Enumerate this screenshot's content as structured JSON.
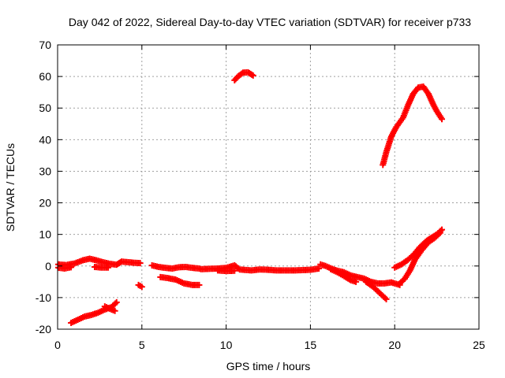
{
  "chart_data": {
    "type": "scatter",
    "title": "Day 042 of 2022, Sidereal Day-to-day VTEC variation (SDTVAR) for receiver p733",
    "xlabel": "GPS time / hours",
    "ylabel": "SDTVAR / TECUs",
    "xlim": [
      0,
      25
    ],
    "ylim": [
      -20,
      70
    ],
    "xticks": [
      0,
      5,
      10,
      15,
      20,
      25
    ],
    "yticks": [
      -20,
      -10,
      0,
      10,
      20,
      30,
      40,
      50,
      60,
      70
    ],
    "xtick_labels": [
      "0",
      "5",
      "10",
      "15",
      "20",
      "25"
    ],
    "ytick_labels": [
      "-20",
      "-10",
      "0",
      "10",
      "20",
      "30",
      "40",
      "50",
      "60",
      "70"
    ],
    "grid": true,
    "marker": "plus",
    "color": "#ff0000",
    "series": [
      {
        "name": "trace-1",
        "points": [
          [
            0.0,
            0.5
          ],
          [
            0.5,
            0.3
          ],
          [
            1.0,
            0.8
          ],
          [
            1.5,
            1.8
          ],
          [
            1.9,
            2.3
          ],
          [
            2.3,
            1.8
          ],
          [
            2.7,
            1.2
          ],
          [
            3.1,
            0.7
          ],
          [
            3.5,
            0.4
          ],
          [
            3.8,
            1.4
          ],
          [
            4.2,
            1.2
          ],
          [
            4.6,
            1.0
          ],
          [
            4.9,
            0.9
          ]
        ]
      },
      {
        "name": "trace-2",
        "points": [
          [
            0.0,
            -0.5
          ],
          [
            0.4,
            -0.8
          ],
          [
            0.8,
            -0.4
          ]
        ]
      },
      {
        "name": "trace-3",
        "points": [
          [
            2.2,
            -0.3
          ],
          [
            2.6,
            -0.5
          ],
          [
            3.0,
            -0.5
          ]
        ]
      },
      {
        "name": "trace-4",
        "points": [
          [
            5.6,
            0.2
          ],
          [
            6.0,
            -0.3
          ],
          [
            6.4,
            -0.6
          ],
          [
            6.8,
            -0.8
          ],
          [
            7.2,
            -0.4
          ],
          [
            7.6,
            -0.3
          ],
          [
            8.0,
            -0.6
          ],
          [
            8.4,
            -0.8
          ]
        ]
      },
      {
        "name": "trace-5",
        "points": [
          [
            6.1,
            -3.5
          ],
          [
            6.5,
            -3.8
          ],
          [
            7.0,
            -4.3
          ],
          [
            7.5,
            -5.5
          ],
          [
            8.0,
            -6.0
          ],
          [
            8.4,
            -6.0
          ]
        ]
      },
      {
        "name": "trace-6",
        "points": [
          [
            4.8,
            -6.0
          ],
          [
            5.0,
            -6.6
          ]
        ]
      },
      {
        "name": "trace-7",
        "points": [
          [
            0.8,
            -18.0
          ],
          [
            1.2,
            -17.0
          ],
          [
            1.6,
            -16.0
          ],
          [
            2.0,
            -15.5
          ],
          [
            2.4,
            -14.8
          ],
          [
            2.8,
            -13.8
          ],
          [
            3.2,
            -13.0
          ],
          [
            3.5,
            -11.5
          ]
        ]
      },
      {
        "name": "trace-8",
        "points": [
          [
            2.8,
            -12.8
          ],
          [
            3.2,
            -13.8
          ],
          [
            3.4,
            -14.2
          ]
        ]
      },
      {
        "name": "trace-9",
        "points": [
          [
            8.5,
            -1.0
          ],
          [
            9.0,
            -0.9
          ],
          [
            9.5,
            -0.8
          ],
          [
            10.0,
            -0.6
          ],
          [
            10.5,
            0.2
          ],
          [
            10.8,
            -1.1
          ],
          [
            11.5,
            -1.4
          ],
          [
            12.0,
            -1.1
          ],
          [
            12.5,
            -1.2
          ],
          [
            13.0,
            -1.4
          ],
          [
            13.5,
            -1.4
          ],
          [
            14.0,
            -1.4
          ],
          [
            14.5,
            -1.3
          ],
          [
            15.0,
            -1.2
          ],
          [
            15.5,
            -0.8
          ]
        ]
      },
      {
        "name": "trace-10",
        "points": [
          [
            9.5,
            -1.4
          ],
          [
            10.0,
            -1.6
          ],
          [
            10.5,
            -1.5
          ]
        ]
      },
      {
        "name": "trace-11",
        "points": [
          [
            15.6,
            0.5
          ],
          [
            15.9,
            0.0
          ],
          [
            16.2,
            -0.7
          ],
          [
            16.6,
            -1.5
          ],
          [
            17.0,
            -2.0
          ],
          [
            17.4,
            -3.0
          ],
          [
            17.8,
            -3.5
          ],
          [
            18.2,
            -4.0
          ],
          [
            18.6,
            -5.0
          ],
          [
            19.0,
            -5.5
          ],
          [
            19.4,
            -5.5
          ],
          [
            19.8,
            -5.2
          ],
          [
            20.0,
            -5.5
          ],
          [
            20.3,
            -6.0
          ]
        ]
      },
      {
        "name": "trace-12",
        "points": [
          [
            16.2,
            -1.0
          ],
          [
            16.6,
            -2.0
          ],
          [
            17.0,
            -3.2
          ],
          [
            17.4,
            -4.5
          ],
          [
            17.7,
            -5.0
          ]
        ]
      },
      {
        "name": "trace-13",
        "points": [
          [
            18.3,
            -5.0
          ],
          [
            18.7,
            -6.5
          ],
          [
            19.1,
            -8.5
          ],
          [
            19.5,
            -10.5
          ]
        ]
      },
      {
        "name": "trace-14",
        "points": [
          [
            20.0,
            -0.5
          ],
          [
            20.4,
            0.5
          ],
          [
            20.8,
            2.0
          ],
          [
            21.2,
            4.0
          ],
          [
            21.5,
            6.0
          ],
          [
            21.9,
            8.0
          ],
          [
            22.2,
            9.0
          ],
          [
            22.5,
            10.0
          ],
          [
            22.8,
            11.5
          ]
        ]
      },
      {
        "name": "trace-15",
        "points": [
          [
            20.3,
            -5.5
          ],
          [
            20.6,
            -4.0
          ],
          [
            20.9,
            -1.5
          ],
          [
            21.2,
            2.0
          ],
          [
            21.6,
            5.0
          ],
          [
            22.0,
            7.5
          ],
          [
            22.4,
            9.0
          ],
          [
            22.7,
            10.5
          ]
        ]
      },
      {
        "name": "trace-16",
        "points": [
          [
            10.5,
            58.8
          ],
          [
            10.7,
            60.0
          ],
          [
            11.0,
            61.2
          ],
          [
            11.3,
            61.3
          ],
          [
            11.6,
            60.3
          ]
        ]
      },
      {
        "name": "trace-17",
        "points": [
          [
            19.3,
            32.0
          ],
          [
            19.5,
            36.0
          ],
          [
            19.8,
            41.0
          ],
          [
            20.1,
            44.0
          ],
          [
            20.5,
            47.0
          ],
          [
            20.8,
            51.0
          ],
          [
            21.1,
            54.5
          ],
          [
            21.4,
            56.5
          ],
          [
            21.7,
            56.8
          ],
          [
            22.0,
            54.5
          ],
          [
            22.3,
            51.0
          ],
          [
            22.5,
            49.0
          ],
          [
            22.8,
            46.5
          ]
        ]
      }
    ]
  }
}
